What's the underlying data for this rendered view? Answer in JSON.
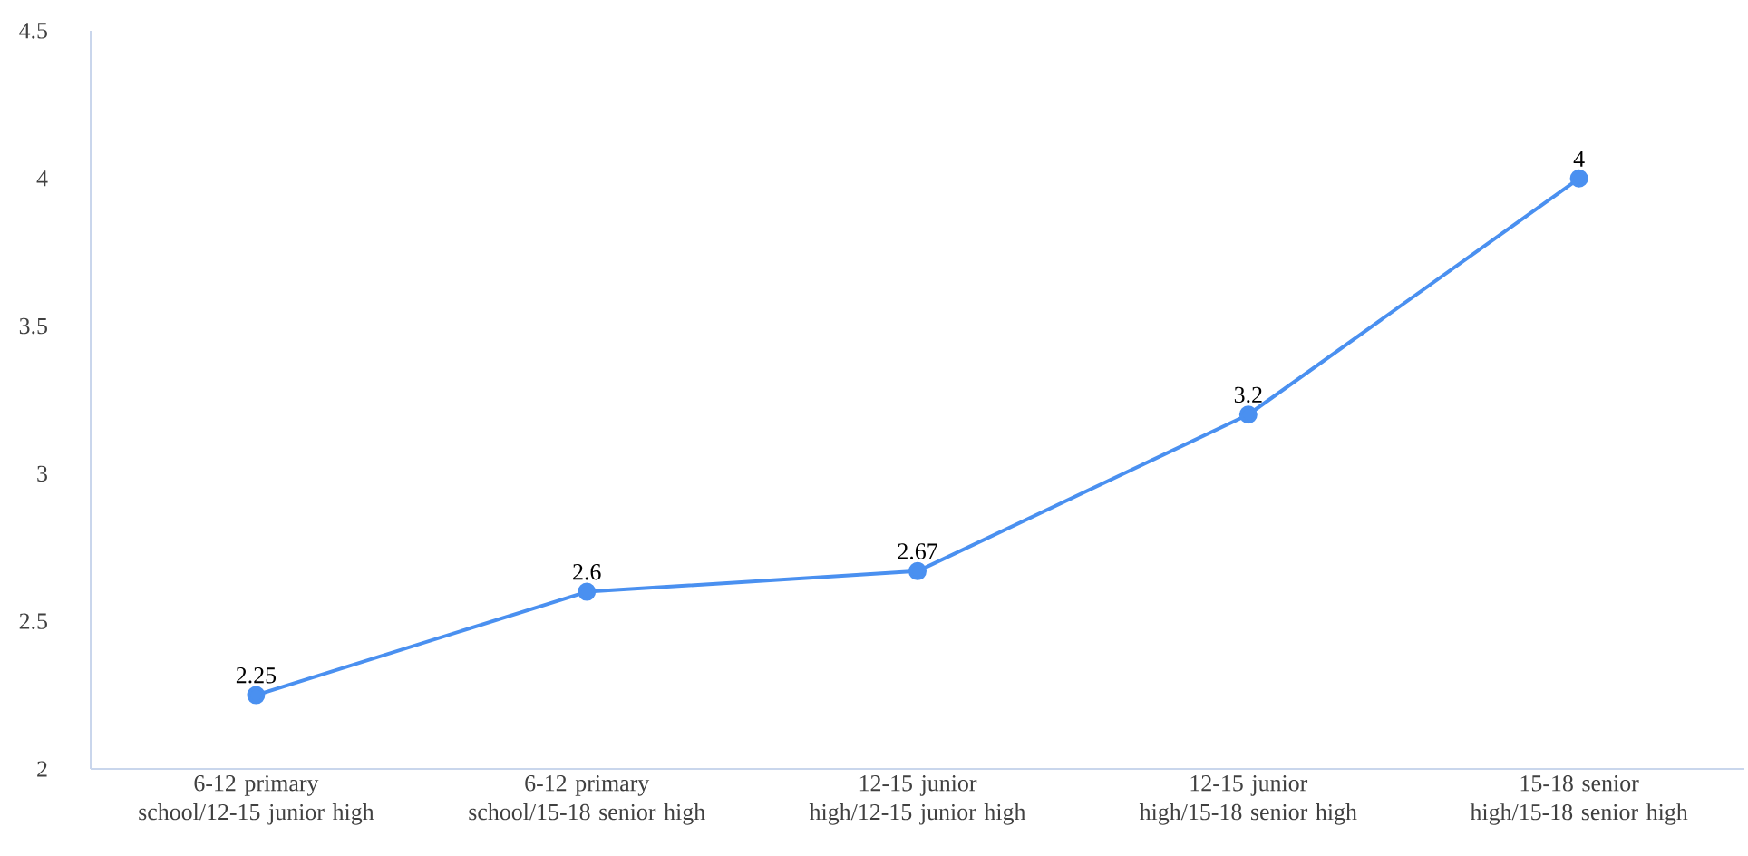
{
  "chart_data": {
    "type": "line",
    "categories": [
      "6-12 primary school/12-15 junior high",
      "6-12 primary school/15-18 senior high",
      "12-15 junior high/12-15 junior high",
      "12-15 junior high/15-18 senior high",
      "15-18 senior high/15-18 senior high"
    ],
    "values": [
      2.25,
      2.6,
      2.67,
      3.2,
      4
    ],
    "color": "#4a90f0",
    "ylim": [
      2,
      4.5
    ],
    "yticks": [
      2,
      2.5,
      3,
      3.5,
      4,
      4.5
    ],
    "grid": false,
    "marker": "circle",
    "line_style": "solid",
    "data_labels": true
  }
}
